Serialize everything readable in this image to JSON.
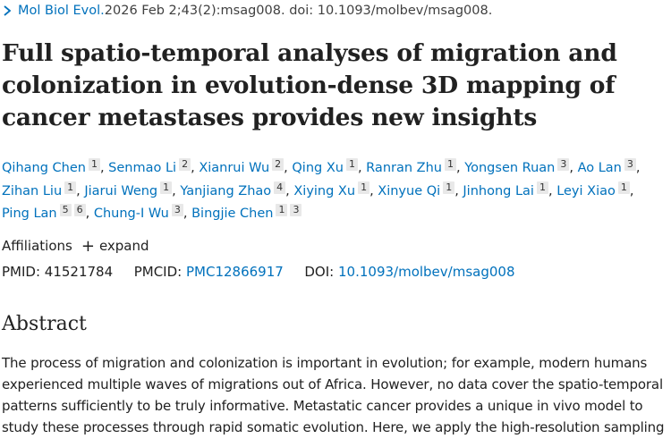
{
  "journal": {
    "name": "Mol Biol Evol.",
    "citation": " 2026 Feb 2;43(2):msag008. doi: 10.1093/molbev/msag008."
  },
  "title": "Full spatio-temporal analyses of migration and colonization in evolution-dense 3D mapping of cancer metastases provides new insights",
  "authors": [
    {
      "name": "Qihang Chen",
      "affs": [
        "1"
      ]
    },
    {
      "name": "Senmao Li",
      "affs": [
        "2"
      ]
    },
    {
      "name": "Xianrui Wu",
      "affs": [
        "2"
      ]
    },
    {
      "name": "Qing Xu",
      "affs": [
        "1"
      ]
    },
    {
      "name": "Ranran Zhu",
      "affs": [
        "1"
      ]
    },
    {
      "name": "Yongsen Ruan",
      "affs": [
        "3"
      ]
    },
    {
      "name": "Ao Lan",
      "affs": [
        "3"
      ]
    },
    {
      "name": "Zihan Liu",
      "affs": [
        "1"
      ]
    },
    {
      "name": "Jiarui Weng",
      "affs": [
        "1"
      ]
    },
    {
      "name": "Yanjiang Zhao",
      "affs": [
        "4"
      ]
    },
    {
      "name": "Xiying Xu",
      "affs": [
        "1"
      ]
    },
    {
      "name": "Xinyue Qi",
      "affs": [
        "1"
      ]
    },
    {
      "name": "Jinhong Lai",
      "affs": [
        "1"
      ]
    },
    {
      "name": "Leyi Xiao",
      "affs": [
        "1"
      ]
    },
    {
      "name": "Ping Lan",
      "affs": [
        "5",
        "6"
      ]
    },
    {
      "name": "Chung-I Wu",
      "affs": [
        "3"
      ]
    },
    {
      "name": "Bingjie Chen",
      "affs": [
        "1",
        "3"
      ]
    }
  ],
  "affiliations": {
    "label": "Affiliations",
    "expand_label": "expand",
    "expand_icon": "plus-icon"
  },
  "ids": {
    "pmid_label": "PMID:",
    "pmid": "41521784",
    "pmcid_label": "PMCID:",
    "pmcid": "PMC12866917",
    "doi_label": "DOI:",
    "doi": "10.1093/molbev/msag008"
  },
  "abstract": {
    "heading": "Abstract",
    "text": "The process of migration and colonization is important in evolution; for example, modern humans experienced multiple waves of migrations out of Africa. However, no data cover the spatio-temporal patterns sufficiently to be truly informative. Metastatic cancer provides a unique in vivo model to study these processes through rapid somatic evolution. Here, we apply the high-resolution sampling"
  },
  "colors": {
    "link": "#0071bc",
    "text": "#212121",
    "aff_badge_bg": "#e8e8e8"
  }
}
